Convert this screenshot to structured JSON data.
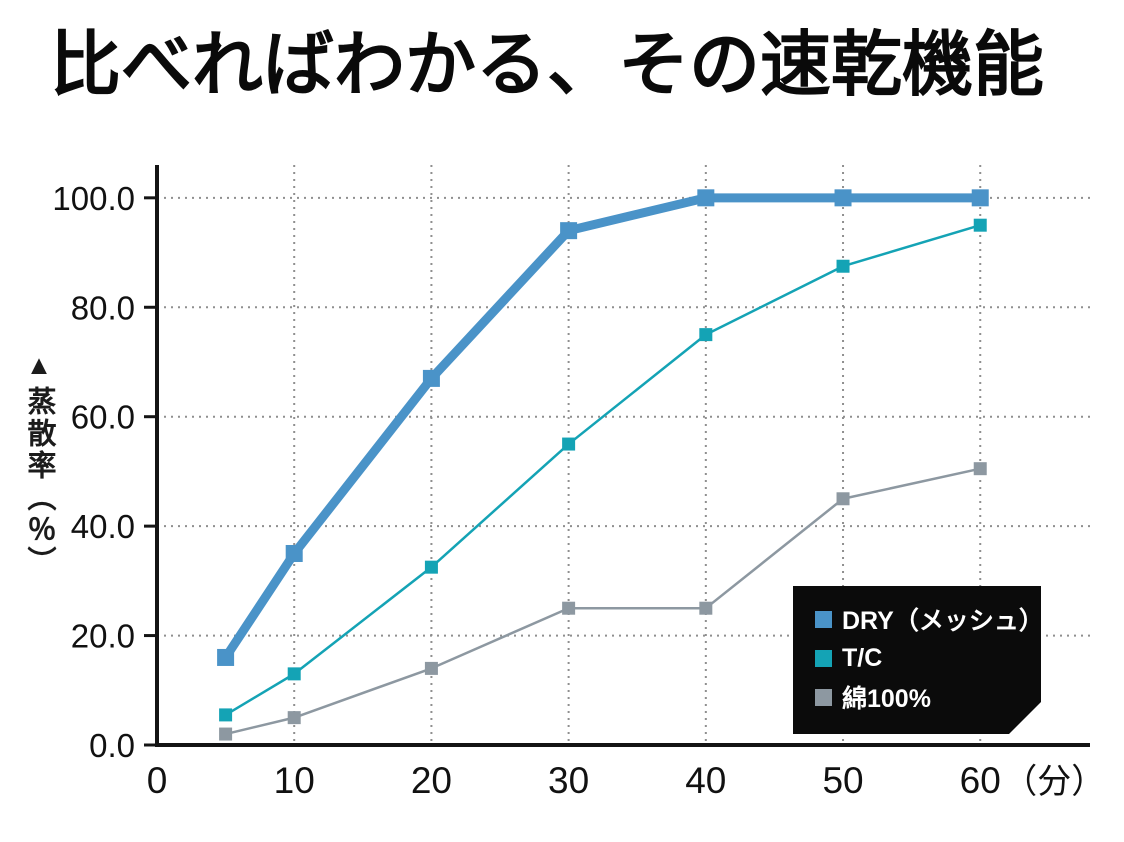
{
  "title": "比べればわかる、その速乾機能",
  "y_axis_title": {
    "arrow": "▲",
    "text": "蒸散率（％）"
  },
  "chart_data": {
    "type": "line",
    "title": "比べればわかる、その速乾機能",
    "x": [
      5,
      10,
      20,
      30,
      40,
      50,
      60
    ],
    "series": [
      {
        "name": "DRY（メッシュ）",
        "color": "#4a93c8",
        "line_width": 9,
        "marker_size": 17,
        "values": [
          16,
          35,
          67,
          94,
          100,
          100,
          100
        ]
      },
      {
        "name": "T/C",
        "color": "#14a3b5",
        "line_width": 2.5,
        "marker_size": 13,
        "values": [
          5.5,
          13,
          32.5,
          55,
          75,
          87.5,
          95
        ]
      },
      {
        "name": "綿100%",
        "color": "#8d98a1",
        "line_width": 2.5,
        "marker_size": 13,
        "values": [
          2,
          5,
          14,
          25,
          25,
          45,
          50.5
        ]
      }
    ],
    "x_ticks": {
      "values": [
        0,
        10,
        20,
        30,
        40,
        50,
        60
      ],
      "labels": [
        "0",
        "10",
        "20",
        "30",
        "40",
        "50",
        "60（分）"
      ]
    },
    "y_ticks": {
      "values": [
        0,
        20,
        40,
        60,
        80,
        100
      ],
      "labels": [
        "0.0",
        "20.0",
        "40.0",
        "60.0",
        "80.0",
        "100.0"
      ]
    },
    "xlim": [
      0,
      68
    ],
    "ylim": [
      0,
      106
    ],
    "xlabel": "分",
    "ylabel": "蒸散率（％）",
    "grid": "dotted",
    "grid_color": "#8f8f8f",
    "axis_color": "#141414",
    "legend": {
      "position": "bottom-right",
      "background": "#0b0b0b",
      "text_color": "#ffffff"
    }
  }
}
